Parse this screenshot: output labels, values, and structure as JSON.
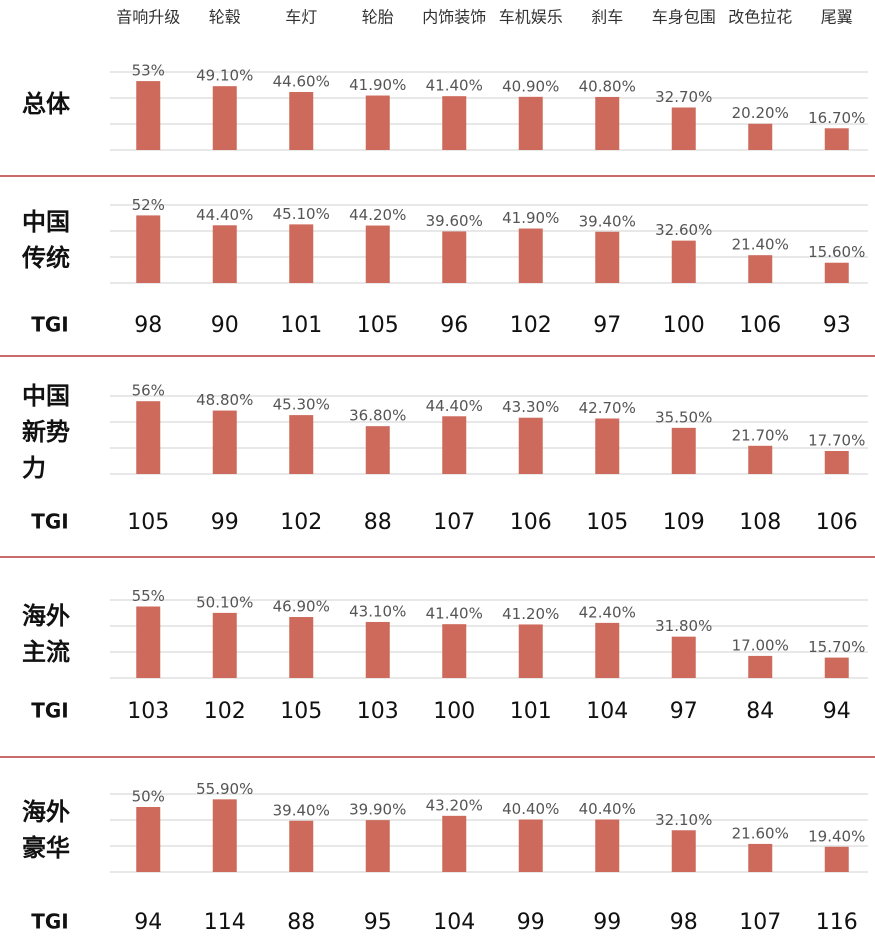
{
  "categories": [
    "音响升级",
    "轮毂",
    "车灯",
    "轮胎",
    "内饰装饰",
    "车机娱乐",
    "刹车",
    "车身包围",
    "改色拉花",
    "尾翼"
  ],
  "chart_data": [
    {
      "type": "bar",
      "title": "总体",
      "color": "#cd6a5c",
      "ylim": [
        0,
        60
      ],
      "yticks": [
        0,
        20,
        40,
        60
      ],
      "grid": true,
      "values": [
        53,
        49.1,
        44.6,
        41.9,
        41.4,
        40.9,
        40.8,
        32.7,
        20.2,
        16.7
      ],
      "value_labels": [
        "53%",
        "49.10%",
        "44.60%",
        "41.90%",
        "41.40%",
        "40.90%",
        "40.80%",
        "32.70%",
        "20.20%",
        "16.70%"
      ]
    },
    {
      "type": "bar",
      "title": "中国传统",
      "color": "#cd6a5c",
      "ylim": [
        0,
        60
      ],
      "yticks": [
        0,
        20,
        40,
        60
      ],
      "grid": true,
      "values": [
        52,
        44.4,
        45.1,
        44.2,
        39.6,
        41.9,
        39.4,
        32.6,
        21.4,
        15.6
      ],
      "value_labels": [
        "52%",
        "44.40%",
        "45.10%",
        "44.20%",
        "39.60%",
        "41.90%",
        "39.40%",
        "32.60%",
        "21.40%",
        "15.60%"
      ],
      "tgi_label": "TGI",
      "tgi": [
        98,
        90,
        101,
        105,
        96,
        102,
        97,
        100,
        106,
        93
      ]
    },
    {
      "type": "bar",
      "title": "中国新势力",
      "color": "#cd6a5c",
      "ylim": [
        0,
        60
      ],
      "yticks": [
        0,
        20,
        40,
        60
      ],
      "grid": true,
      "values": [
        56,
        48.8,
        45.3,
        36.8,
        44.4,
        43.3,
        42.7,
        35.5,
        21.7,
        17.7
      ],
      "value_labels": [
        "56%",
        "48.80%",
        "45.30%",
        "36.80%",
        "44.40%",
        "43.30%",
        "42.70%",
        "35.50%",
        "21.70%",
        "17.70%"
      ],
      "tgi_label": "TGI",
      "tgi": [
        105,
        99,
        102,
        88,
        107,
        106,
        105,
        109,
        108,
        106
      ]
    },
    {
      "type": "bar",
      "title": "海外主流",
      "color": "#cd6a5c",
      "ylim": [
        0,
        60
      ],
      "yticks": [
        0,
        20,
        40,
        60
      ],
      "grid": true,
      "values": [
        55,
        50.1,
        46.9,
        43.1,
        41.4,
        41.2,
        42.4,
        31.8,
        17.0,
        15.7
      ],
      "value_labels": [
        "55%",
        "50.10%",
        "46.90%",
        "43.10%",
        "41.40%",
        "41.20%",
        "42.40%",
        "31.80%",
        "17.00%",
        "15.70%"
      ],
      "tgi_label": "TGI",
      "tgi": [
        103,
        102,
        105,
        103,
        100,
        101,
        104,
        97,
        84,
        94
      ]
    },
    {
      "type": "bar",
      "title": "海外豪华",
      "color": "#cd6a5c",
      "ylim": [
        0,
        60
      ],
      "yticks": [
        0,
        20,
        40,
        60
      ],
      "grid": true,
      "values": [
        50,
        55.9,
        39.4,
        39.9,
        43.2,
        40.4,
        40.4,
        32.1,
        21.6,
        19.4
      ],
      "value_labels": [
        "50%",
        "55.90%",
        "39.40%",
        "39.90%",
        "43.20%",
        "40.40%",
        "40.40%",
        "32.10%",
        "21.60%",
        "19.40%"
      ],
      "tgi_label": "TGI",
      "tgi": [
        94,
        114,
        88,
        95,
        104,
        99,
        99,
        98,
        107,
        116
      ]
    }
  ]
}
